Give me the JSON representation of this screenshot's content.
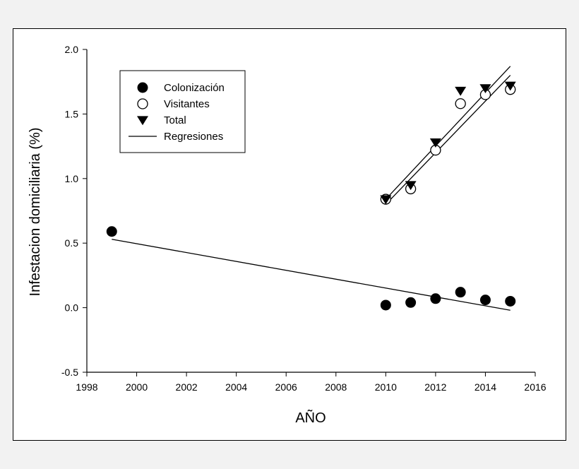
{
  "chart_data": {
    "type": "scatter",
    "xlabel": "AÑO",
    "ylabel": "Infestacion domiciliaria (%)",
    "xlim": [
      1998,
      2016
    ],
    "ylim": [
      -0.5,
      2.0
    ],
    "xticks": [
      1998,
      2000,
      2002,
      2004,
      2006,
      2008,
      2010,
      2012,
      2014,
      2016
    ],
    "yticks": [
      -0.5,
      0.0,
      0.5,
      1.0,
      1.5,
      2.0
    ],
    "xtick_labels": [
      "1998",
      "2000",
      "2002",
      "2004",
      "2006",
      "2008",
      "2010",
      "2012",
      "2014",
      "2016"
    ],
    "ytick_labels": [
      "-0.5",
      "0.0",
      "0.5",
      "1.0",
      "1.5",
      "2.0"
    ],
    "legend_position": "top-left",
    "series": [
      {
        "name": "Colonización",
        "marker": "filled-circle",
        "color": "#000000",
        "x": [
          1999,
          2010,
          2011,
          2012,
          2013,
          2014,
          2015
        ],
        "y": [
          0.59,
          0.02,
          0.04,
          0.07,
          0.12,
          0.06,
          0.05
        ]
      },
      {
        "name": "Visitantes",
        "marker": "open-circle",
        "color": "#000000",
        "x": [
          2010,
          2011,
          2012,
          2013,
          2014,
          2015
        ],
        "y": [
          0.84,
          0.92,
          1.22,
          1.58,
          1.65,
          1.69
        ]
      },
      {
        "name": "Total",
        "marker": "filled-triangle-down",
        "color": "#000000",
        "x": [
          2010,
          2011,
          2012,
          2013,
          2014,
          2015
        ],
        "y": [
          0.84,
          0.95,
          1.28,
          1.68,
          1.7,
          1.72
        ]
      }
    ],
    "regressions": {
      "name": "Regresiones",
      "lines": [
        {
          "for": "Colonización",
          "x": [
            1999,
            2015
          ],
          "y": [
            0.53,
            -0.02
          ]
        },
        {
          "for": "Visitantes",
          "x": [
            2010,
            2015
          ],
          "y": [
            0.8,
            1.8
          ]
        },
        {
          "for": "Total",
          "x": [
            2010,
            2015
          ],
          "y": [
            0.84,
            1.87
          ]
        }
      ]
    }
  }
}
